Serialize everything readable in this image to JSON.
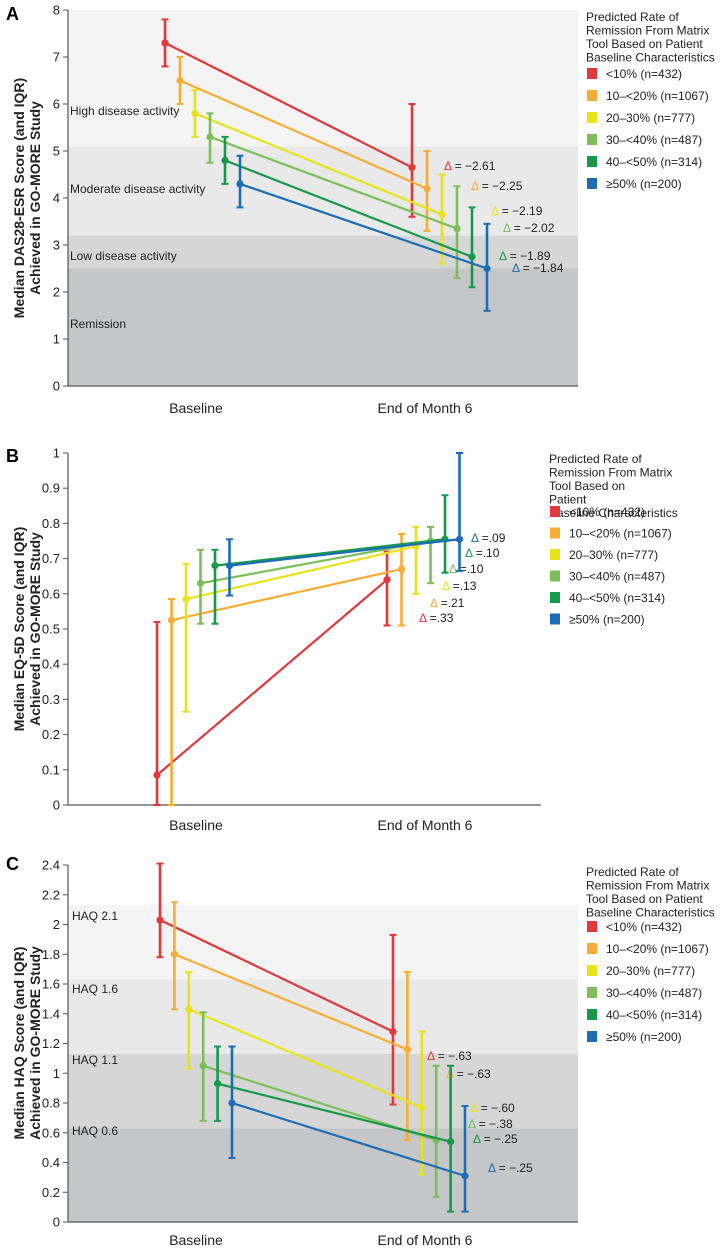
{
  "series_meta": [
    {
      "name": "<10% (n=432)",
      "color": "#e0383b"
    },
    {
      "name": "10–<20% (n=1067)",
      "color": "#f6ad35"
    },
    {
      "name": "20–30% (n=777)",
      "color": "#e8e219"
    },
    {
      "name": "30–<40% (n=487)",
      "color": "#7cbe5a"
    },
    {
      "name": "40–<50% (n=314)",
      "color": "#16994a"
    },
    {
      "name": "≥50% (n=200)",
      "color": "#1d6db5"
    }
  ],
  "legend_title": [
    "Predicted Rate of",
    "Remission From Matrix",
    "Tool Based on Patient",
    "Baseline Characteristics"
  ],
  "legend_title_b": [
    "Predicted Rate of",
    "Remission From Matrix",
    "Tool Based on",
    "Patient",
    "Baseline Characteristics"
  ],
  "chart_data": [
    {
      "panel": "A",
      "type": "line",
      "categories": [
        "Baseline",
        "End of Month 6"
      ],
      "ylabel": [
        "Median DAS28-ESR Score (and IQR)",
        "Achieved in GO-MORE Study"
      ],
      "ylim": [
        0,
        8
      ],
      "yticks": [
        0,
        1,
        2,
        3,
        4,
        5,
        6,
        7,
        8
      ],
      "zones": [
        {
          "label": "High disease activity",
          "from": 5.1,
          "to": 8,
          "shade": "#f4f4f4"
        },
        {
          "label": "Moderate disease activity",
          "from": 3.2,
          "to": 5.1,
          "shade": "#e9e9e9"
        },
        {
          "label": "Low disease activity",
          "from": 2.5,
          "to": 3.2,
          "shade": "#d6d6d6"
        },
        {
          "label": "Remission",
          "from": 0,
          "to": 2.5,
          "shade": "#c4c6c7"
        }
      ],
      "series": [
        {
          "baseline": 7.3,
          "base_q1": 6.8,
          "base_q3": 7.8,
          "month6": 4.65,
          "m6_q1": 3.6,
          "m6_q3": 6.0,
          "delta": "Δ = −2.61"
        },
        {
          "baseline": 6.5,
          "base_q1": 6.0,
          "base_q3": 7.0,
          "month6": 4.2,
          "m6_q1": 3.3,
          "m6_q3": 5.0,
          "delta": "Δ = −2.25"
        },
        {
          "baseline": 5.8,
          "base_q1": 5.3,
          "base_q3": 6.3,
          "month6": 3.65,
          "m6_q1": 2.6,
          "m6_q3": 4.5,
          "delta": "Δ = −2.19"
        },
        {
          "baseline": 5.3,
          "base_q1": 4.75,
          "base_q3": 5.8,
          "month6": 3.35,
          "m6_q1": 2.3,
          "m6_q3": 4.25,
          "delta": "Δ = −2.02"
        },
        {
          "baseline": 4.8,
          "base_q1": 4.3,
          "base_q3": 5.3,
          "month6": 2.75,
          "m6_q1": 2.1,
          "m6_q3": 3.8,
          "delta": "Δ = −1.89"
        },
        {
          "baseline": 4.3,
          "base_q1": 3.8,
          "base_q3": 4.9,
          "month6": 2.5,
          "m6_q1": 1.6,
          "m6_q3": 3.45,
          "delta": "Δ = −1.84"
        }
      ]
    },
    {
      "panel": "B",
      "type": "line",
      "categories": [
        "Baseline",
        "End of Month 6"
      ],
      "ylabel": [
        "Median EQ-5D Score (and IQR)",
        "Achieved in GO-MORE Study"
      ],
      "ylim": [
        0,
        1
      ],
      "yticks": [
        0,
        0.1,
        0.2,
        0.3,
        0.4,
        0.5,
        0.6,
        0.7,
        0.8,
        0.9,
        1
      ],
      "zones": [],
      "series": [
        {
          "baseline": 0.085,
          "base_q1": 0.0,
          "base_q3": 0.52,
          "month6": 0.64,
          "m6_q1": 0.51,
          "m6_q3": 0.72,
          "delta": "Δ =.33"
        },
        {
          "baseline": 0.525,
          "base_q1": 0.0,
          "base_q3": 0.585,
          "month6": 0.67,
          "m6_q1": 0.51,
          "m6_q3": 0.77,
          "delta": "Δ =.21"
        },
        {
          "baseline": 0.585,
          "base_q1": 0.265,
          "base_q3": 0.685,
          "month6": 0.735,
          "m6_q1": 0.6,
          "m6_q3": 0.79,
          "delta": "Δ =.13"
        },
        {
          "baseline": 0.63,
          "base_q1": 0.515,
          "base_q3": 0.725,
          "month6": 0.75,
          "m6_q1": 0.63,
          "m6_q3": 0.79,
          "delta": "Δ =.10"
        },
        {
          "baseline": 0.68,
          "base_q1": 0.515,
          "base_q3": 0.725,
          "month6": 0.755,
          "m6_q1": 0.66,
          "m6_q3": 0.88,
          "delta": "Δ =.10"
        },
        {
          "baseline": 0.68,
          "base_q1": 0.595,
          "base_q3": 0.755,
          "month6": 0.755,
          "m6_q1": 0.665,
          "m6_q3": 1.0,
          "delta": "Δ =.09"
        }
      ]
    },
    {
      "panel": "C",
      "type": "line",
      "categories": [
        "Baseline",
        "End of Month 6"
      ],
      "ylabel": [
        "Median HAQ Score (and IQR)",
        "Achieved in GO-MORE Study"
      ],
      "ylim": [
        0,
        2.4
      ],
      "yticks": [
        0,
        0.2,
        0.4,
        0.6,
        0.8,
        1,
        1.2,
        1.4,
        1.6,
        1.8,
        2,
        2.2,
        2.4
      ],
      "zones": [
        {
          "label": "HAQ 2.1",
          "from": 1.63,
          "to": 2.13,
          "shade": "#f4f4f4"
        },
        {
          "label": "HAQ 1.6",
          "from": 1.13,
          "to": 1.63,
          "shade": "#e9e9e9"
        },
        {
          "label": "HAQ 1.1",
          "from": 0.63,
          "to": 1.13,
          "shade": "#d6d6d6"
        },
        {
          "label": "HAQ 0.6",
          "from": 0,
          "to": 0.63,
          "shade": "#c4c6c7"
        }
      ],
      "series": [
        {
          "baseline": 2.03,
          "base_q1": 1.78,
          "base_q3": 2.41,
          "month6": 1.28,
          "m6_q1": 0.79,
          "m6_q3": 1.93,
          "delta": "Δ = −.63"
        },
        {
          "baseline": 1.8,
          "base_q1": 1.43,
          "base_q3": 2.15,
          "month6": 1.16,
          "m6_q1": 0.55,
          "m6_q3": 1.68,
          "delta": "Δ = −.63"
        },
        {
          "baseline": 1.43,
          "base_q1": 1.03,
          "base_q3": 1.68,
          "month6": 0.77,
          "m6_q1": 0.32,
          "m6_q3": 1.28,
          "delta": "Δ = −.60"
        },
        {
          "baseline": 1.05,
          "base_q1": 0.68,
          "base_q3": 1.41,
          "month6": 0.55,
          "m6_q1": 0.17,
          "m6_q3": 1.05,
          "delta": "Δ = −.38"
        },
        {
          "baseline": 0.93,
          "base_q1": 0.68,
          "base_q3": 1.18,
          "month6": 0.54,
          "m6_q1": 0.07,
          "m6_q3": 1.05,
          "delta": "Δ = −.25"
        },
        {
          "baseline": 0.8,
          "base_q1": 0.43,
          "base_q3": 1.18,
          "month6": 0.31,
          "m6_q1": 0.07,
          "m6_q3": 0.78,
          "delta": "Δ = −.25"
        }
      ]
    }
  ]
}
